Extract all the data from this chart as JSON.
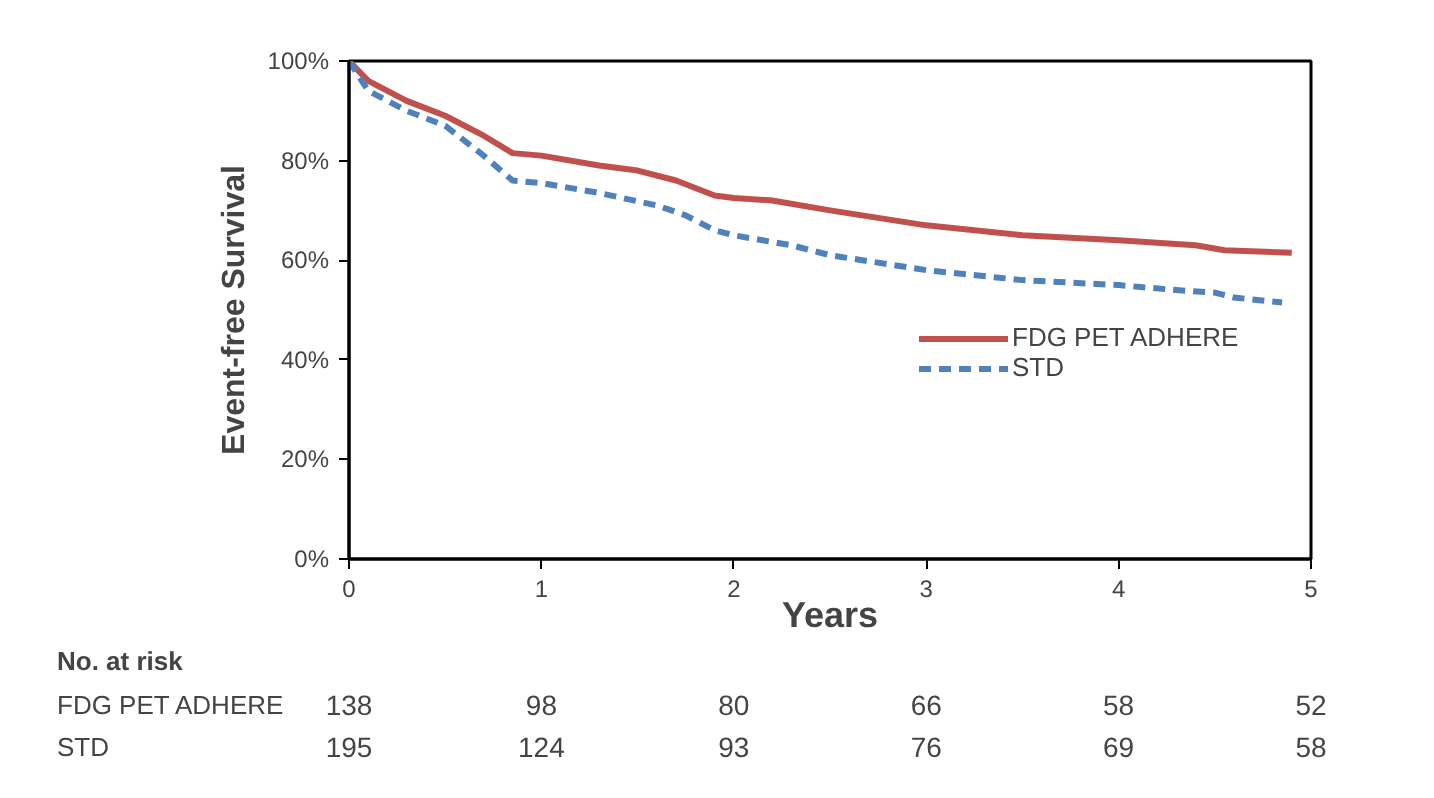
{
  "chart_data": {
    "type": "line",
    "xlabel": "Years",
    "ylabel": "Event-free Survival",
    "xlim": [
      0,
      5
    ],
    "ylim": [
      0,
      100
    ],
    "xticks": [
      0,
      1,
      2,
      3,
      4,
      5
    ],
    "yticks": [
      {
        "value": 0,
        "label": "0%"
      },
      {
        "value": 20,
        "label": "20%"
      },
      {
        "value": 40,
        "label": "40%"
      },
      {
        "value": 60,
        "label": "60%"
      },
      {
        "value": 80,
        "label": "80%"
      },
      {
        "value": 100,
        "label": "100%"
      }
    ],
    "grid": false,
    "legend": "right",
    "marker": "none",
    "series": [
      {
        "name": "FDG PET ADHERE",
        "color": "#c0504d",
        "line_style": "solid",
        "x": [
          0,
          0.1,
          0.3,
          0.5,
          0.7,
          0.85,
          1.0,
          1.3,
          1.5,
          1.7,
          1.9,
          2.0,
          2.2,
          2.5,
          3.0,
          3.5,
          4.0,
          4.4,
          4.55,
          4.9
        ],
        "values": [
          100,
          96,
          92,
          89,
          85,
          81.5,
          81,
          79,
          78,
          76,
          73,
          72.5,
          72,
          70,
          67,
          65,
          64,
          63,
          62,
          61.5
        ]
      },
      {
        "name": "STD",
        "color": "#4f81bd",
        "line_style": "dashed",
        "x": [
          0,
          0.1,
          0.3,
          0.5,
          0.7,
          0.85,
          1.0,
          1.3,
          1.6,
          1.75,
          1.9,
          2.0,
          2.3,
          2.5,
          3.0,
          3.5,
          4.0,
          4.3,
          4.5,
          4.6,
          4.85
        ],
        "values": [
          100,
          94,
          90,
          87,
          81,
          76,
          75.5,
          73.5,
          71,
          69,
          66,
          65,
          63,
          61,
          58,
          56,
          55,
          54,
          53.5,
          52.5,
          51.5
        ]
      }
    ],
    "annotations": [
      "No. at risk",
      "FDG PET ADHERE",
      "138",
      "98",
      "80",
      "66",
      "58",
      "52",
      "STD",
      "195",
      "124",
      "93",
      "76",
      "69",
      "58"
    ]
  }
}
